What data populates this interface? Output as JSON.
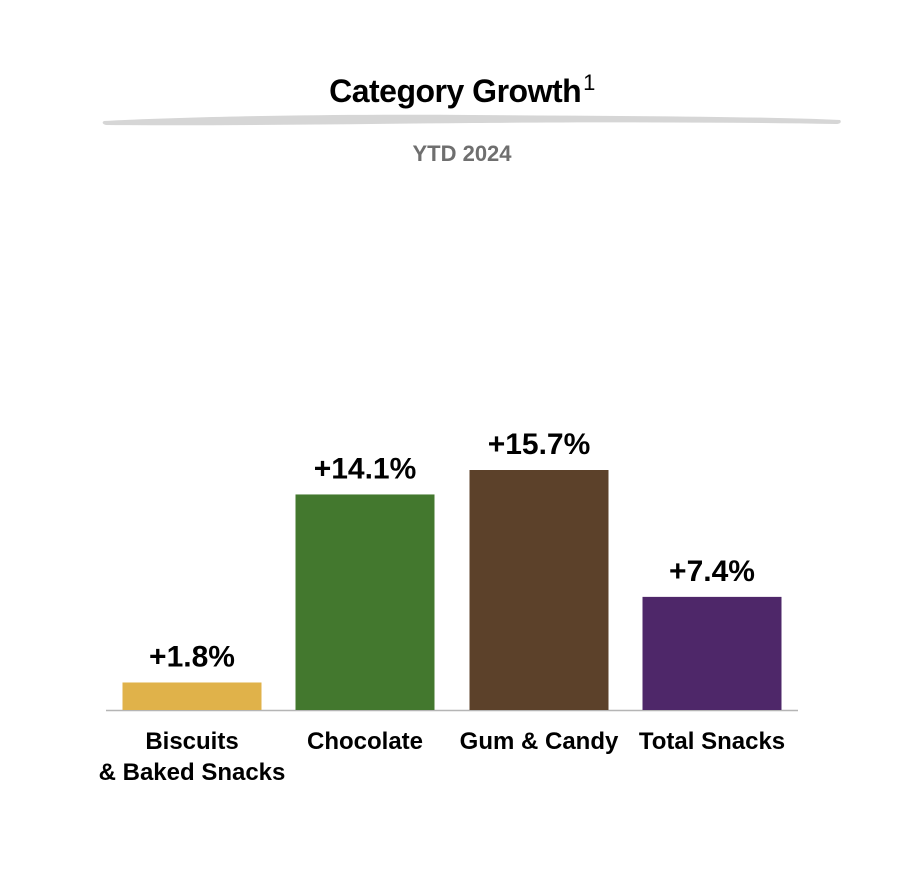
{
  "header": {
    "title": "Category Growth",
    "title_footnote": "1",
    "subtitle": "YTD 2024"
  },
  "chart_data": {
    "type": "bar",
    "title": "Category Growth",
    "subtitle": "YTD 2024",
    "categories": [
      "Biscuits & Baked Snacks",
      "Chocolate",
      "Gum & Candy",
      "Total Snacks"
    ],
    "category_lines": [
      [
        "Biscuits",
        "& Baked Snacks"
      ],
      [
        "Chocolate"
      ],
      [
        "Gum & Candy"
      ],
      [
        "Total Snacks"
      ]
    ],
    "values": [
      1.8,
      14.1,
      15.7,
      7.4
    ],
    "value_labels": [
      "+1.8%",
      "+14.1%",
      "+15.7%",
      "+7.4%"
    ],
    "unit": "%",
    "colors": [
      "#E0B24A",
      "#43782E",
      "#5C412A",
      "#4E2769"
    ],
    "axis_color": "#B5B5B5",
    "swoosh_color": "#D6D6D6",
    "ylim": [
      0,
      15.7
    ],
    "xlabel": "",
    "ylabel": "",
    "grid": false,
    "legend": "none"
  }
}
